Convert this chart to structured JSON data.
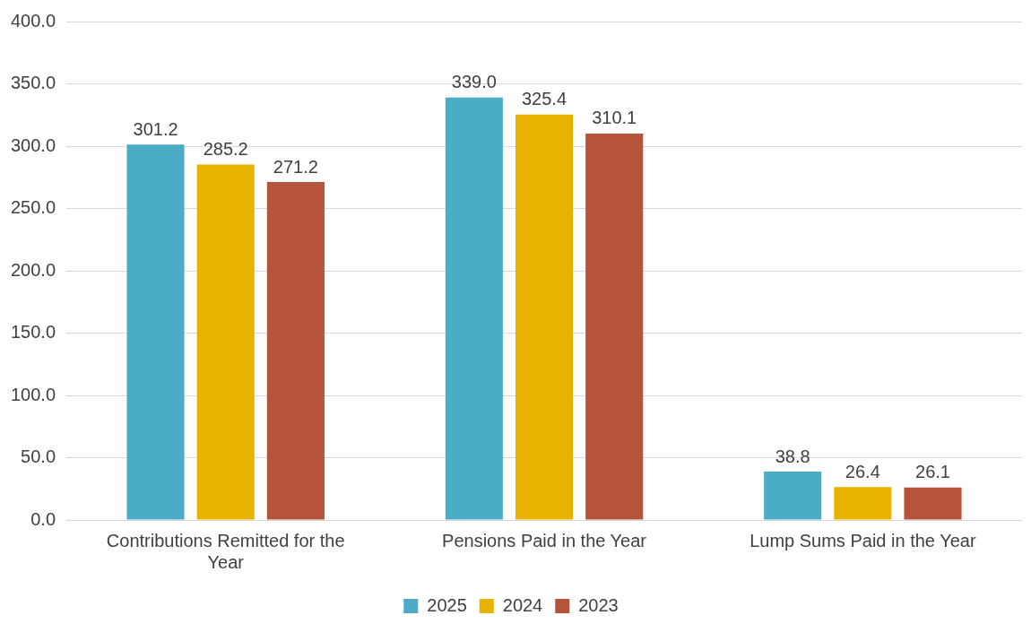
{
  "chart_data": {
    "type": "bar",
    "categories": [
      "Contributions Remitted for the Year",
      "Pensions Paid in the Year",
      "Lump Sums Paid in the Year"
    ],
    "series": [
      {
        "name": "2025",
        "color": "#4bacc6",
        "values": [
          301.2,
          339.0,
          38.8
        ],
        "value_labels": [
          "301.2",
          "339.0",
          "38.8"
        ]
      },
      {
        "name": "2024",
        "color": "#e8b300",
        "values": [
          285.2,
          325.4,
          26.4
        ],
        "value_labels": [
          "285.2",
          "325.4",
          "26.4"
        ]
      },
      {
        "name": "2023",
        "color": "#b5533b",
        "values": [
          271.2,
          310.1,
          26.1
        ],
        "value_labels": [
          "271.2",
          "310.1",
          "26.1"
        ]
      }
    ],
    "ylim": [
      0,
      400
    ],
    "yticks": [
      {
        "value": 0,
        "label": "0.0"
      },
      {
        "value": 50,
        "label": "50.0"
      },
      {
        "value": 100,
        "label": "100.0"
      },
      {
        "value": 150,
        "label": "150.0"
      },
      {
        "value": 200,
        "label": "200.0"
      },
      {
        "value": 250,
        "label": "250.0"
      },
      {
        "value": 300,
        "label": "300.0"
      },
      {
        "value": 350,
        "label": "350.0"
      },
      {
        "value": 400,
        "label": "400.0"
      }
    ],
    "grid": "y",
    "legend": "bottom"
  }
}
